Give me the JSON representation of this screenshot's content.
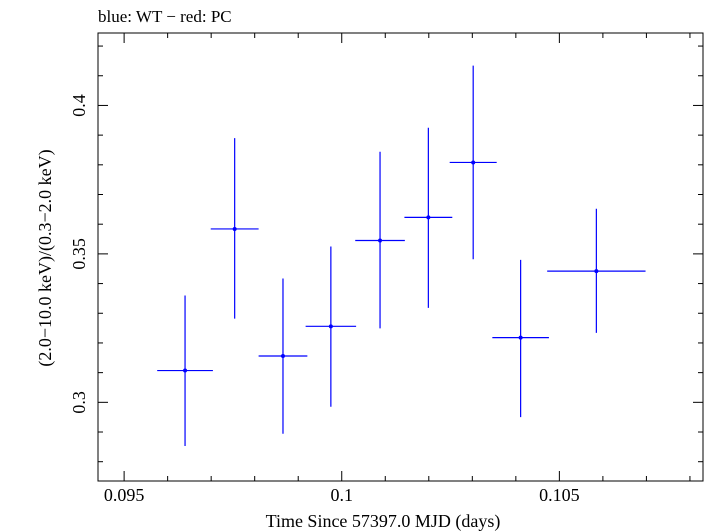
{
  "chart_data": {
    "type": "scatter",
    "title": "blue: WT − red: PC",
    "xlabel": "Time Since 57397.0 MJD (days)",
    "ylabel": "(2.0−10.0 keV)/(0.3−2.0 keV)",
    "xlim": [
      0.0944,
      0.1083
    ],
    "ylim": [
      0.2735,
      0.4244
    ],
    "x_ticks": [
      {
        "value": 0.095,
        "label": "0.095"
      },
      {
        "value": 0.1,
        "label": "0.1"
      },
      {
        "value": 0.105,
        "label": "0.105"
      }
    ],
    "y_ticks": [
      {
        "value": 0.3,
        "label": "0.3"
      },
      {
        "value": 0.35,
        "label": "0.35"
      },
      {
        "value": 0.4,
        "label": "0.4"
      }
    ],
    "grid": false,
    "series": [
      {
        "name": "WT",
        "color": "#0000ff",
        "points": [
          {
            "x": 0.0964,
            "y": 0.3107,
            "xerr": 0.00064,
            "yerr_low": 0.0254,
            "yerr_high": 0.0253
          },
          {
            "x": 0.09754,
            "y": 0.3584,
            "xerr": 0.00055,
            "yerr_low": 0.0302,
            "yerr_high": 0.0306
          },
          {
            "x": 0.09865,
            "y": 0.3156,
            "xerr": 0.00056,
            "yerr_low": 0.0262,
            "yerr_high": 0.0261
          },
          {
            "x": 0.09975,
            "y": 0.3256,
            "xerr": 0.00058,
            "yerr_low": 0.0271,
            "yerr_high": 0.0269
          },
          {
            "x": 0.10088,
            "y": 0.3545,
            "xerr": 0.00057,
            "yerr_low": 0.0296,
            "yerr_high": 0.0299
          },
          {
            "x": 0.10199,
            "y": 0.3623,
            "xerr": 0.00055,
            "yerr_low": 0.0305,
            "yerr_high": 0.0302
          },
          {
            "x": 0.10302,
            "y": 0.3808,
            "xerr": 0.00054,
            "yerr_low": 0.0326,
            "yerr_high": 0.0326
          },
          {
            "x": 0.10411,
            "y": 0.3218,
            "xerr": 0.00065,
            "yerr_low": 0.0268,
            "yerr_high": 0.0262
          },
          {
            "x": 0.10585,
            "y": 0.3442,
            "xerr": 0.00113,
            "yerr_low": 0.0208,
            "yerr_high": 0.021
          }
        ]
      }
    ]
  }
}
